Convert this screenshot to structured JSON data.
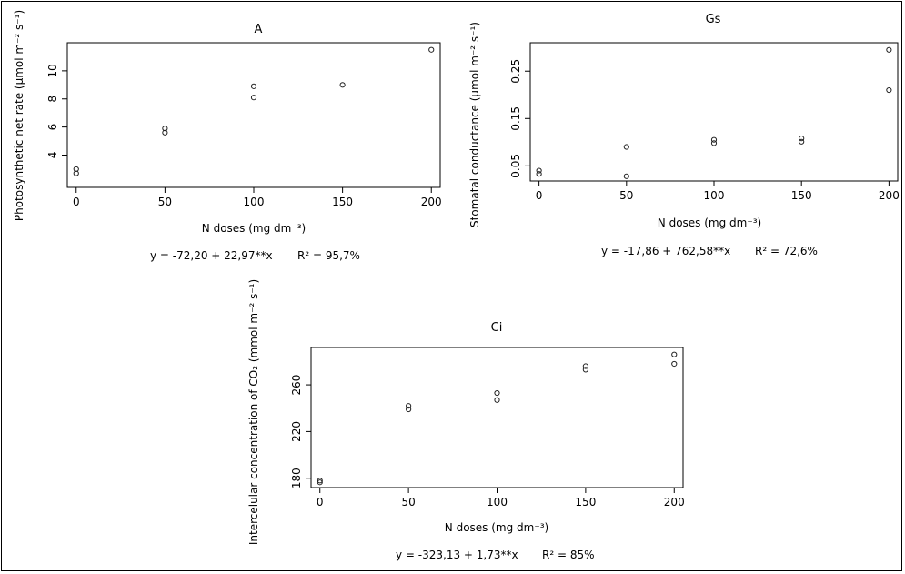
{
  "chart_data": [
    {
      "type": "scatter",
      "title": "A",
      "xlabel": "N doses (mg dm⁻³)",
      "ylabel": "Photosynthetic net rate (μmol m⁻² s⁻¹)",
      "equation": "y = -72,20 + 22,97**x",
      "r2": "R² = 95,7%",
      "xlim": [
        -5,
        205
      ],
      "ylim": [
        1.7,
        12.0
      ],
      "xticks": [
        0,
        50,
        100,
        150,
        200
      ],
      "yticks": [
        4,
        6,
        8,
        10
      ],
      "points": [
        [
          0,
          3.0
        ],
        [
          0,
          2.7
        ],
        [
          50,
          5.9
        ],
        [
          50,
          5.6
        ],
        [
          100,
          8.9
        ],
        [
          100,
          8.1
        ],
        [
          150,
          9.0
        ],
        [
          200,
          11.5
        ]
      ]
    },
    {
      "type": "scatter",
      "title": "Gs",
      "xlabel": "N doses (mg dm⁻³)",
      "ylabel": "Stomatal conductance (μmol m⁻² s⁻¹)",
      "equation": "y = -17,86 + 762,58**x",
      "r2": "R² = 72,6%",
      "xlim": [
        -5,
        205
      ],
      "ylim": [
        0.018,
        0.31
      ],
      "xticks": [
        0,
        50,
        100,
        150,
        200
      ],
      "yticks": [
        0.05,
        0.15,
        0.25
      ],
      "ytick_labels": [
        "0.05",
        "0.15",
        "0.25"
      ],
      "points": [
        [
          0,
          0.04
        ],
        [
          0,
          0.033
        ],
        [
          50,
          0.09
        ],
        [
          50,
          0.028
        ],
        [
          100,
          0.105
        ],
        [
          100,
          0.098
        ],
        [
          150,
          0.108
        ],
        [
          150,
          0.101
        ],
        [
          200,
          0.295
        ],
        [
          200,
          0.21
        ]
      ]
    },
    {
      "type": "scatter",
      "title": "Ci",
      "xlabel": "N doses (mg dm⁻³)",
      "ylabel": "Intercelular concentration of CO₂ (mmol m⁻² s⁻¹)",
      "equation": "y = -323,13 + 1,73**x",
      "r2": "R² = 85%",
      "xlim": [
        -5,
        205
      ],
      "ylim": [
        172,
        292
      ],
      "xticks": [
        0,
        50,
        100,
        150,
        200
      ],
      "yticks": [
        180,
        220,
        260
      ],
      "points": [
        [
          0,
          178
        ],
        [
          0,
          176.5
        ],
        [
          50,
          242
        ],
        [
          50,
          239
        ],
        [
          100,
          253
        ],
        [
          100,
          247
        ],
        [
          150,
          276
        ],
        [
          150,
          273
        ],
        [
          200,
          286
        ],
        [
          200,
          278
        ]
      ]
    }
  ]
}
